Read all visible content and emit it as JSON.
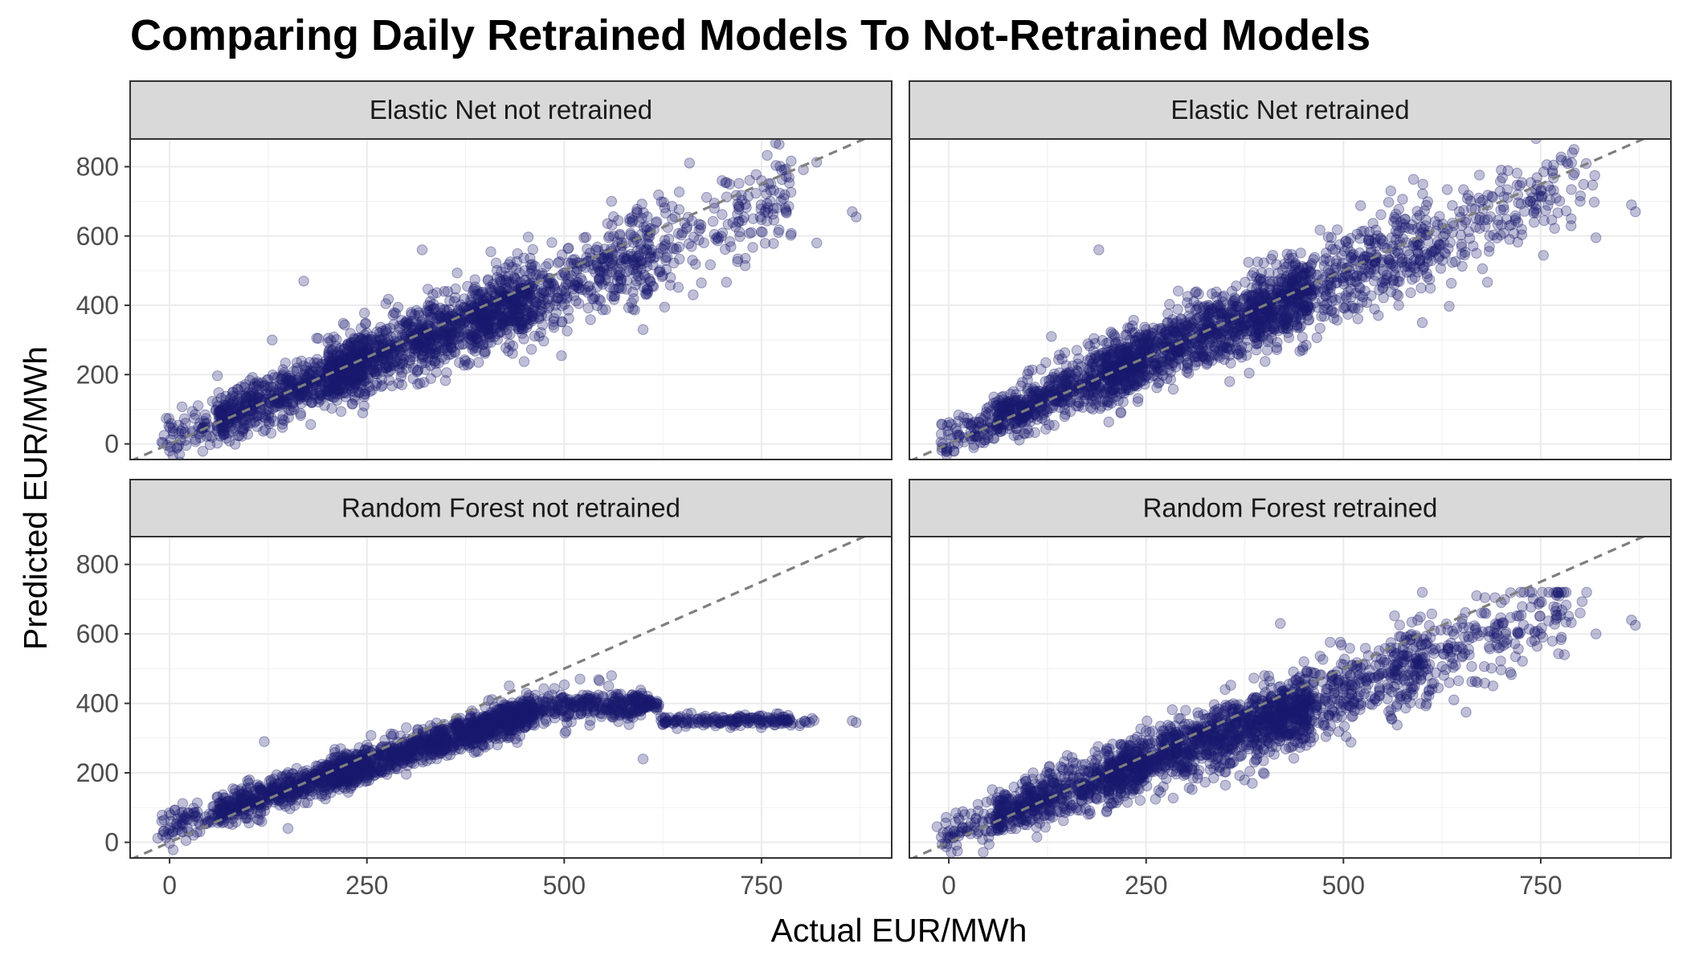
{
  "chart_data": {
    "type": "scatter",
    "title": "Comparing Daily Retrained Models To Not-Retrained Models",
    "xlabel": "Actual EUR/MWh",
    "ylabel": "Predicted EUR/MWh",
    "xlim": [
      -50,
      915
    ],
    "ylim": [
      -45,
      880
    ],
    "x_ticks": [
      0,
      250,
      500,
      750
    ],
    "y_ticks": [
      0,
      200,
      400,
      600,
      800
    ],
    "grid": true,
    "reference_line": "y = x (dashed, grey)",
    "point_color": "#1a1a6e",
    "point_alpha": 0.28,
    "panels": [
      {
        "label": "Elastic Net not retrained",
        "model": "elastic_net",
        "sample_points": [
          [
            -10,
            5
          ],
          [
            20,
            60
          ],
          [
            60,
            120
          ],
          [
            100,
            150
          ],
          [
            130,
            300
          ],
          [
            150,
            130
          ],
          [
            170,
            470
          ],
          [
            200,
            180
          ],
          [
            250,
            320
          ],
          [
            300,
            340
          ],
          [
            320,
            560
          ],
          [
            360,
            300
          ],
          [
            400,
            380
          ],
          [
            420,
            440
          ],
          [
            450,
            500
          ],
          [
            500,
            450
          ],
          [
            540,
            560
          ],
          [
            560,
            700
          ],
          [
            600,
            330
          ],
          [
            650,
            610
          ],
          [
            700,
            760
          ],
          [
            750,
            760
          ],
          [
            780,
            680
          ],
          [
            820,
            580
          ],
          [
            865,
            670
          ],
          [
            870,
            655
          ]
        ]
      },
      {
        "label": "Elastic Net retrained",
        "model": "elastic_net",
        "sample_points": [
          [
            -10,
            5
          ],
          [
            20,
            60
          ],
          [
            60,
            120
          ],
          [
            100,
            160
          ],
          [
            130,
            310
          ],
          [
            150,
            140
          ],
          [
            190,
            560
          ],
          [
            200,
            190
          ],
          [
            250,
            330
          ],
          [
            300,
            350
          ],
          [
            360,
            320
          ],
          [
            400,
            400
          ],
          [
            430,
            470
          ],
          [
            460,
            520
          ],
          [
            500,
            470
          ],
          [
            540,
            580
          ],
          [
            560,
            730
          ],
          [
            600,
            350
          ],
          [
            650,
            630
          ],
          [
            700,
            790
          ],
          [
            750,
            730
          ],
          [
            790,
            840
          ],
          [
            800,
            700
          ],
          [
            820,
            595
          ],
          [
            865,
            690
          ],
          [
            870,
            670
          ]
        ]
      },
      {
        "label": "Random Forest not retrained",
        "model": "random_forest",
        "sample_points": [
          [
            -15,
            12
          ],
          [
            20,
            70
          ],
          [
            60,
            130
          ],
          [
            100,
            170
          ],
          [
            120,
            290
          ],
          [
            150,
            40
          ],
          [
            200,
            200
          ],
          [
            250,
            280
          ],
          [
            300,
            330
          ],
          [
            350,
            300
          ],
          [
            400,
            360
          ],
          [
            450,
            330
          ],
          [
            480,
            420
          ],
          [
            520,
            470
          ],
          [
            560,
            480
          ],
          [
            600,
            240
          ],
          [
            650,
            345
          ],
          [
            700,
            350
          ],
          [
            750,
            350
          ],
          [
            780,
            350
          ],
          [
            865,
            350
          ],
          [
            870,
            345
          ]
        ]
      },
      {
        "label": "Random Forest retrained",
        "model": "random_forest",
        "sample_points": [
          [
            -15,
            45
          ],
          [
            20,
            80
          ],
          [
            60,
            120
          ],
          [
            100,
            160
          ],
          [
            150,
            250
          ],
          [
            200,
            220
          ],
          [
            250,
            320
          ],
          [
            300,
            380
          ],
          [
            350,
            440
          ],
          [
            400,
            480
          ],
          [
            420,
            630
          ],
          [
            450,
            520
          ],
          [
            500,
            460
          ],
          [
            560,
            560
          ],
          [
            600,
            720
          ],
          [
            640,
            410
          ],
          [
            700,
            690
          ],
          [
            750,
            600
          ],
          [
            780,
            540
          ],
          [
            800,
            660
          ],
          [
            820,
            600
          ],
          [
            865,
            640
          ],
          [
            870,
            625
          ]
        ]
      }
    ]
  }
}
